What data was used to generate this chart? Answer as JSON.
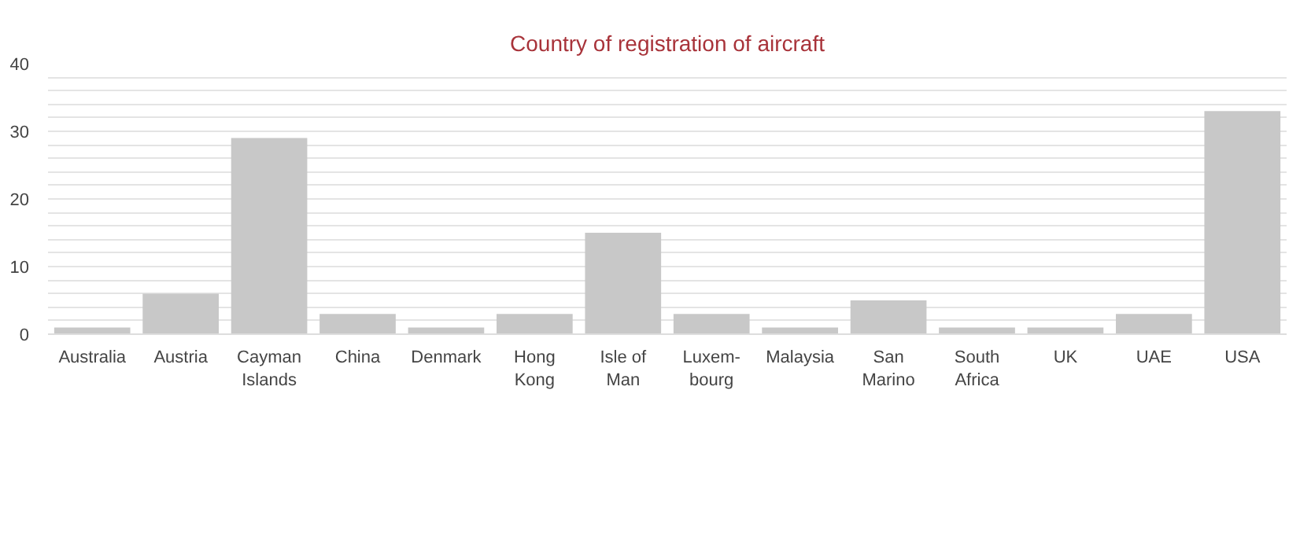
{
  "chart_data": {
    "type": "bar",
    "title": "Country of registration of aircraft",
    "categories": [
      "Australia",
      "Austria",
      "Cayman\nIslands",
      "China",
      "Denmark",
      "Hong\nKong",
      "Isle of\nMan",
      "Luxem-\nbourg",
      "Malaysia",
      "San\nMarino",
      "South\nAfrica",
      "UK",
      "UAE",
      "USA"
    ],
    "values": [
      1,
      6,
      29,
      3,
      1,
      3,
      15,
      3,
      1,
      5,
      1,
      1,
      3,
      33
    ],
    "color": "#c8c8c8",
    "ylim": [
      0,
      40
    ],
    "yticks": [
      0,
      {
        "value": 2,
        "label": null
      },
      {
        "value": 4,
        "label": null
      },
      {
        "value": 6,
        "label": null
      },
      {
        "value": 8,
        "label": null
      },
      10,
      {
        "value": 12,
        "label": null
      },
      {
        "value": 14,
        "label": null
      },
      {
        "value": 16,
        "label": null
      },
      {
        "value": 18,
        "label": null
      },
      20,
      {
        "value": 22,
        "label": null
      },
      {
        "value": 24,
        "label": null
      },
      {
        "value": 26,
        "label": null
      },
      {
        "value": 28,
        "label": null
      },
      30,
      {
        "value": 32,
        "label": null
      },
      {
        "value": 34,
        "label": null
      },
      {
        "value": 36,
        "label": null
      },
      {
        "value": 38,
        "label": null
      },
      40
    ],
    "grid": "y"
  }
}
